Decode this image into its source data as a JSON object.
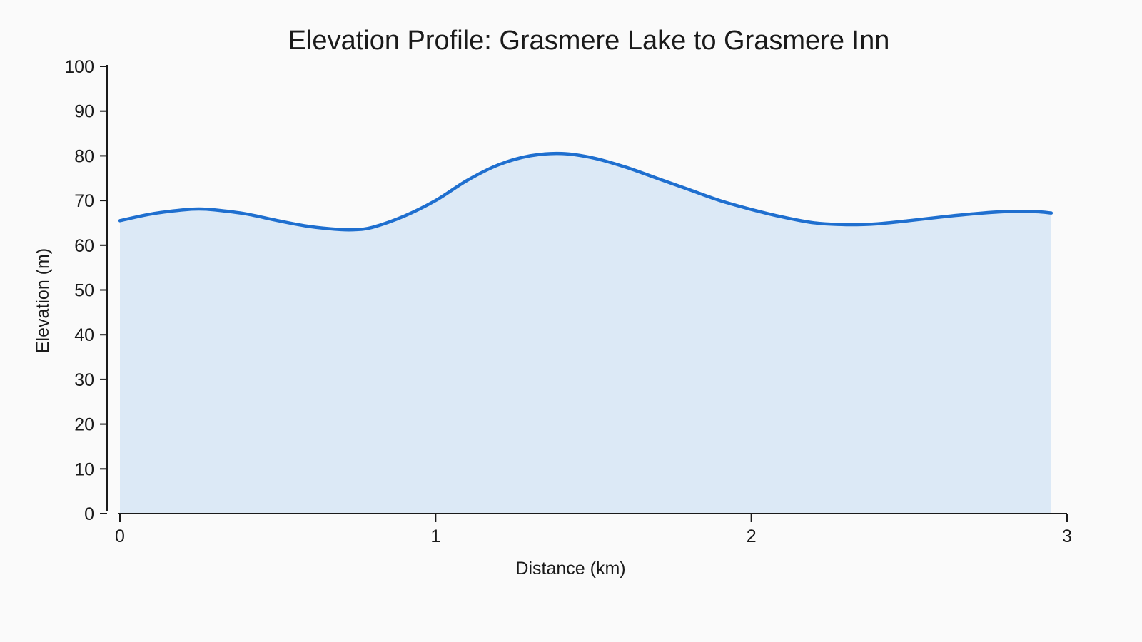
{
  "chart_data": {
    "type": "area",
    "title": "Elevation Profile: Grasmere Lake to Grasmere Inn",
    "xlabel": "Distance (km)",
    "ylabel": "Elevation (m)",
    "xlim": [
      0,
      3
    ],
    "ylim": [
      0,
      100
    ],
    "xticks": [
      0,
      1,
      2,
      3
    ],
    "yticks": [
      0,
      10,
      20,
      30,
      40,
      50,
      60,
      70,
      80,
      90,
      100
    ],
    "grid": false,
    "legend": "none",
    "colors": {
      "line": "#1f6fcf",
      "fill": "#dce9f6",
      "axis": "#1a1a1a"
    },
    "series": [
      {
        "x": [
          0.0,
          0.1,
          0.2,
          0.25,
          0.3,
          0.4,
          0.5,
          0.6,
          0.7,
          0.75,
          0.8,
          0.9,
          1.0,
          1.1,
          1.2,
          1.3,
          1.4,
          1.5,
          1.6,
          1.7,
          1.8,
          1.9,
          2.0,
          2.1,
          2.2,
          2.3,
          2.4,
          2.5,
          2.6,
          2.7,
          2.8,
          2.9,
          2.95
        ],
        "y": [
          65.5,
          67.0,
          67.9,
          68.1,
          67.9,
          67.0,
          65.5,
          64.2,
          63.5,
          63.5,
          64.0,
          66.5,
          70.0,
          74.5,
          78.0,
          80.0,
          80.5,
          79.5,
          77.5,
          75.0,
          72.5,
          70.0,
          68.0,
          66.3,
          65.0,
          64.6,
          64.8,
          65.5,
          66.3,
          67.0,
          67.5,
          67.5,
          67.2
        ]
      }
    ]
  }
}
